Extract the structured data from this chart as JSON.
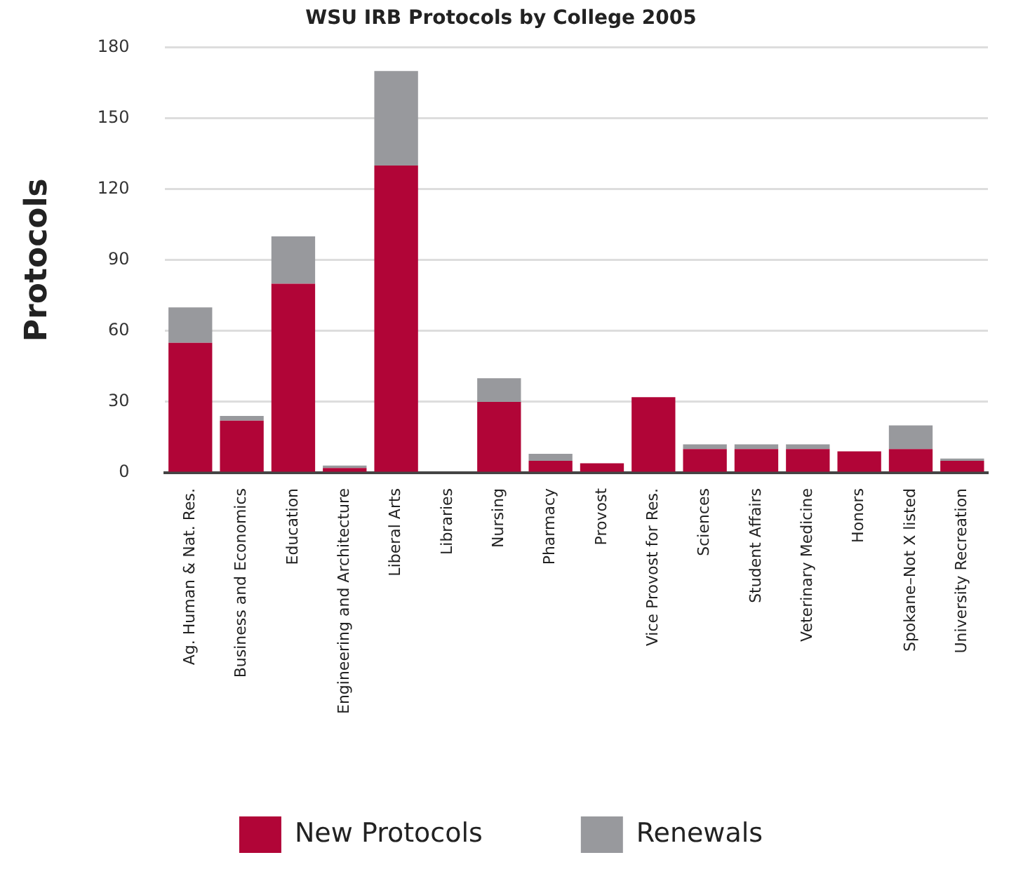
{
  "chart_data": {
    "type": "bar",
    "title": "WSU IRB Protocols by College 2005",
    "ylabel": "Protocols",
    "categories": [
      "Ag. Human & Nat. Res.",
      "Business and Economics",
      "Education",
      "Engineering and Architecture",
      "Liberal Arts",
      "Libraries",
      "Nursing",
      "Pharmacy",
      "Provost",
      "Vice Provost for Res.",
      "Sciences",
      "Student Affairs",
      "Veterinary Medicine",
      "Honors",
      "Spokane–Not X listed",
      "University Recreation"
    ],
    "series": [
      {
        "name": "New Protocols",
        "color": "#b10537",
        "values": [
          55,
          22,
          80,
          2,
          130,
          0,
          30,
          5,
          4,
          32,
          10,
          10,
          10,
          9,
          10,
          5
        ]
      },
      {
        "name": "Renewals",
        "color": "#98999d",
        "values": [
          15,
          2,
          20,
          1,
          40,
          0,
          10,
          3,
          0,
          0,
          2,
          2,
          2,
          0,
          10,
          1
        ]
      }
    ],
    "stacked": true,
    "ylim": [
      0,
      180
    ],
    "yticks": [
      0,
      30,
      60,
      90,
      120,
      150,
      180
    ],
    "grid": "y",
    "legend": "bottom"
  }
}
